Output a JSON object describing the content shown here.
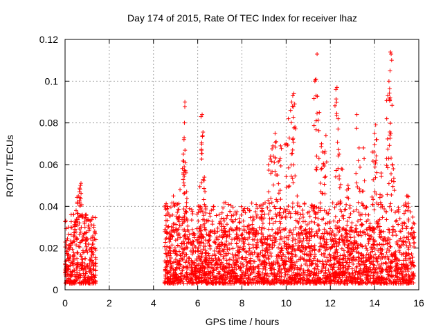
{
  "chart_data": {
    "type": "scatter",
    "title": "Day 174 of 2015, Rate Of TEC Index for receiver lhaz",
    "xlabel": "GPS time / hours",
    "ylabel": "ROTI / TECUs",
    "xlim": [
      0,
      16
    ],
    "ylim": [
      0,
      0.12
    ],
    "xticks": [
      0,
      2,
      4,
      6,
      8,
      10,
      12,
      14,
      16
    ],
    "yticks": [
      0,
      0.02,
      0.04,
      0.06,
      0.08,
      0.1,
      0.12
    ],
    "xtick_labels": [
      "0",
      "2",
      "4",
      "6",
      "8",
      "10",
      "12",
      "14",
      "16"
    ],
    "ytick_labels": [
      "0",
      "0.02",
      "0.04",
      "0.06",
      "0.08",
      "0.1",
      "0.12"
    ],
    "grid": true,
    "marker": "+",
    "color": "#ff0000",
    "series": [
      {
        "name": "ROTI",
        "segments": [
          {
            "x_range": [
              0.0,
              1.4
            ],
            "baseline": [
              0.003,
              0.025
            ]
          },
          {
            "x_range": [
              4.5,
              15.8
            ],
            "baseline": [
              0.003,
              0.03
            ]
          }
        ],
        "points": [
          [
            0.45,
            0.033
          ],
          [
            0.5,
            0.038
          ],
          [
            0.55,
            0.042
          ],
          [
            0.6,
            0.045
          ],
          [
            0.65,
            0.047
          ],
          [
            0.7,
            0.05
          ],
          [
            0.72,
            0.051
          ],
          [
            0.9,
            0.03
          ],
          [
            1.05,
            0.031
          ],
          [
            1.3,
            0.03
          ],
          [
            4.65,
            0.04
          ],
          [
            4.9,
            0.045
          ],
          [
            5.2,
            0.048
          ],
          [
            5.35,
            0.065
          ],
          [
            5.38,
            0.072
          ],
          [
            5.4,
            0.08
          ],
          [
            5.42,
            0.09
          ],
          [
            5.45,
            0.057
          ],
          [
            5.5,
            0.047
          ],
          [
            6.15,
            0.083
          ],
          [
            6.2,
            0.084
          ],
          [
            6.22,
            0.074
          ],
          [
            6.3,
            0.054
          ],
          [
            6.1,
            0.04
          ],
          [
            7.2,
            0.033
          ],
          [
            8.5,
            0.035
          ],
          [
            8.9,
            0.038
          ],
          [
            9.2,
            0.06
          ],
          [
            9.3,
            0.064
          ],
          [
            9.4,
            0.069
          ],
          [
            9.5,
            0.075
          ],
          [
            9.55,
            0.071
          ],
          [
            9.6,
            0.055
          ],
          [
            9.7,
            0.062
          ],
          [
            9.75,
            0.069
          ],
          [
            10.0,
            0.07
          ],
          [
            10.1,
            0.082
          ],
          [
            10.2,
            0.086
          ],
          [
            10.25,
            0.09
          ],
          [
            10.3,
            0.093
          ],
          [
            10.35,
            0.094
          ],
          [
            10.4,
            0.078
          ],
          [
            10.5,
            0.045
          ],
          [
            11.3,
            0.1
          ],
          [
            11.35,
            0.101
          ],
          [
            11.4,
            0.113
          ],
          [
            11.5,
            0.085
          ],
          [
            11.6,
            0.07
          ],
          [
            11.65,
            0.066
          ],
          [
            11.7,
            0.06
          ],
          [
            11.8,
            0.074
          ],
          [
            12.25,
            0.096
          ],
          [
            12.3,
            0.097
          ],
          [
            12.35,
            0.082
          ],
          [
            12.4,
            0.065
          ],
          [
            12.5,
            0.058
          ],
          [
            12.8,
            0.05
          ],
          [
            13.2,
            0.084
          ],
          [
            13.3,
            0.068
          ],
          [
            13.5,
            0.068
          ],
          [
            13.9,
            0.066
          ],
          [
            14.0,
            0.075
          ],
          [
            14.05,
            0.079
          ],
          [
            14.1,
            0.072
          ],
          [
            14.3,
            0.056
          ],
          [
            14.55,
            0.082
          ],
          [
            14.6,
            0.093
          ],
          [
            14.65,
            0.1
          ],
          [
            14.7,
            0.105
          ],
          [
            14.72,
            0.114
          ],
          [
            14.75,
            0.113
          ],
          [
            14.8,
            0.06
          ],
          [
            14.85,
            0.058
          ],
          [
            15.5,
            0.045
          ],
          [
            15.7,
            0.03
          ]
        ]
      }
    ]
  }
}
